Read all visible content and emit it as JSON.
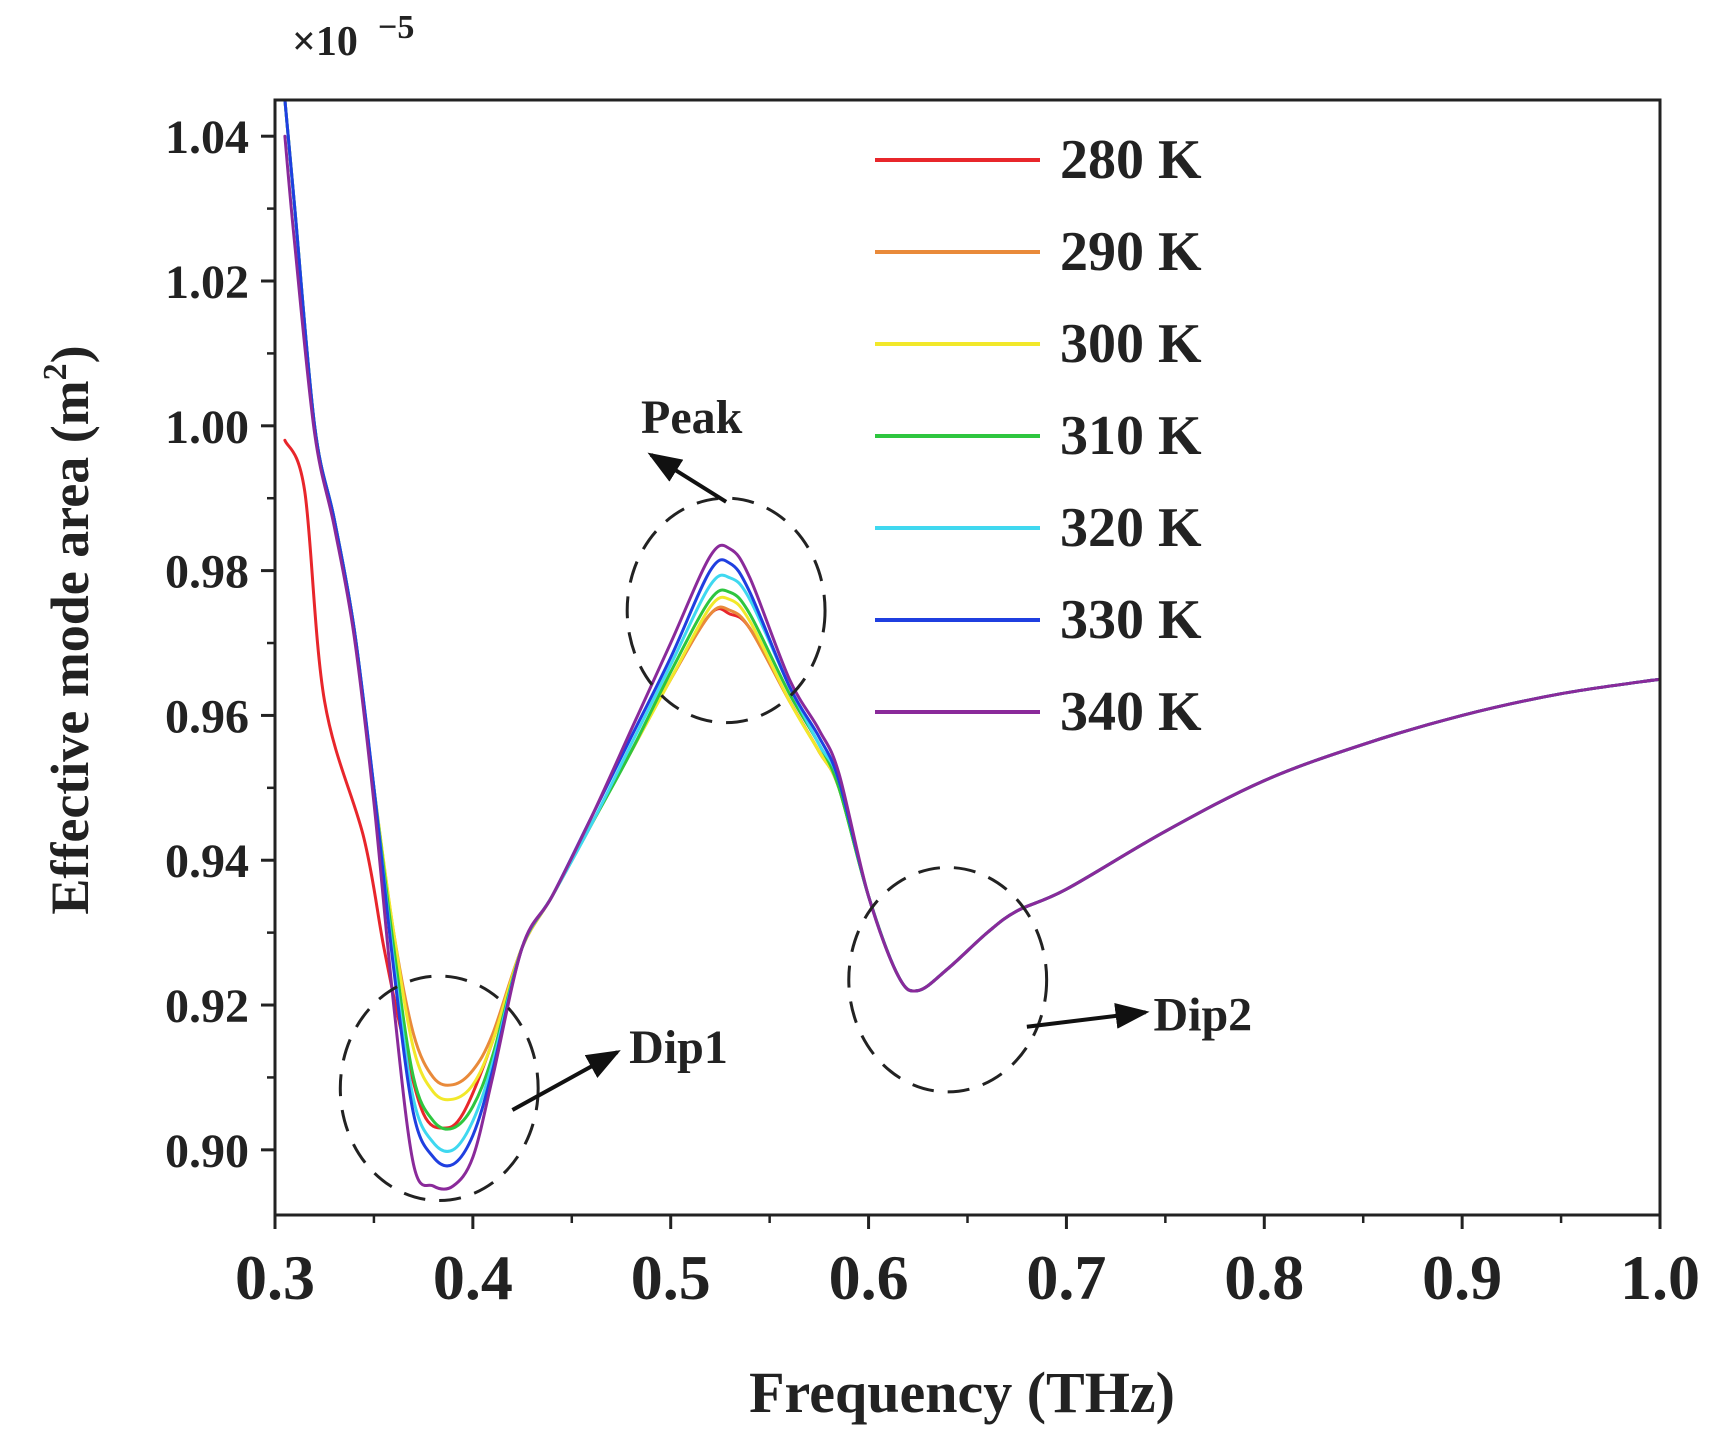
{
  "chart_data": {
    "type": "line",
    "title": "",
    "xlabel": "Frequency (THz)",
    "ylabel_main": "Effective mode area (m",
    "ylabel_sup": "2",
    "ylabel_close": ")",
    "scale_base": "×10",
    "scale_exp": "−5",
    "xlim": [
      0.3,
      1.0
    ],
    "ylim": [
      0.891,
      1.045
    ],
    "x_ticks": [
      0.3,
      0.4,
      0.5,
      0.6,
      0.7,
      0.8,
      0.9,
      1.0
    ],
    "x_tick_labels": [
      "0.3",
      "0.4",
      "0.5",
      "0.6",
      "0.7",
      "0.8",
      "0.9",
      "1.0"
    ],
    "y_ticks": [
      0.9,
      0.92,
      0.94,
      0.96,
      0.98,
      1.0,
      1.02,
      1.04
    ],
    "y_tick_labels": [
      "0.90",
      "0.92",
      "0.94",
      "0.96",
      "0.98",
      "1.00",
      "1.02",
      "1.04"
    ],
    "grid": false,
    "legend_position": "top-right",
    "series": [
      {
        "name": "280 K",
        "color": "#e8262b",
        "x": [
          0.305,
          0.315,
          0.325,
          0.345,
          0.355,
          0.365,
          0.375,
          0.385,
          0.395,
          0.41,
          0.425,
          0.44,
          0.46,
          0.48,
          0.5,
          0.52,
          0.53,
          0.54,
          0.56,
          0.575,
          0.585,
          0.6,
          0.615,
          0.625,
          0.64,
          0.66,
          0.675,
          0.7,
          0.75,
          0.8,
          0.85,
          0.9,
          0.95,
          1.0
        ],
        "y": [
          0.998,
          0.991,
          0.962,
          0.943,
          0.928,
          0.915,
          0.905,
          0.903,
          0.905,
          0.915,
          0.928,
          0.935,
          0.945,
          0.955,
          0.965,
          0.974,
          0.974,
          0.972,
          0.962,
          0.955,
          0.95,
          0.935,
          0.924,
          0.922,
          0.925,
          0.93,
          0.933,
          0.936,
          0.944,
          0.951,
          0.956,
          0.96,
          0.963,
          0.965
        ]
      },
      {
        "name": "290 K",
        "color": "#e98a3a",
        "x": [
          0.305,
          0.31,
          0.32,
          0.33,
          0.34,
          0.35,
          0.36,
          0.37,
          0.38,
          0.39,
          0.4,
          0.41,
          0.425,
          0.44,
          0.46,
          0.48,
          0.5,
          0.52,
          0.53,
          0.54,
          0.56,
          0.575,
          0.585,
          0.6,
          0.615,
          0.625,
          0.64,
          0.66,
          0.675,
          0.7,
          0.75,
          0.8,
          0.85,
          0.9,
          0.95,
          1.0
        ],
        "y": [
          1.045,
          1.03,
          1.0,
          0.987,
          0.972,
          0.95,
          0.93,
          0.916,
          0.91,
          0.909,
          0.911,
          0.916,
          0.928,
          0.935,
          0.945,
          0.955,
          0.965,
          0.974,
          0.9745,
          0.972,
          0.962,
          0.955,
          0.95,
          0.935,
          0.924,
          0.922,
          0.925,
          0.93,
          0.933,
          0.936,
          0.944,
          0.951,
          0.956,
          0.96,
          0.963,
          0.965
        ]
      },
      {
        "name": "300 K",
        "color": "#f2e82a",
        "x": [
          0.305,
          0.31,
          0.32,
          0.33,
          0.34,
          0.35,
          0.36,
          0.37,
          0.38,
          0.39,
          0.4,
          0.41,
          0.425,
          0.44,
          0.46,
          0.48,
          0.5,
          0.52,
          0.53,
          0.54,
          0.56,
          0.575,
          0.585,
          0.6,
          0.615,
          0.625,
          0.64,
          0.66,
          0.675,
          0.7,
          0.75,
          0.8,
          0.85,
          0.9,
          0.95,
          1.0
        ],
        "y": [
          1.045,
          1.03,
          1.0,
          0.987,
          0.972,
          0.95,
          0.93,
          0.914,
          0.908,
          0.907,
          0.909,
          0.915,
          0.928,
          0.935,
          0.945,
          0.955,
          0.965,
          0.975,
          0.976,
          0.973,
          0.962,
          0.955,
          0.95,
          0.935,
          0.924,
          0.922,
          0.925,
          0.93,
          0.933,
          0.936,
          0.944,
          0.951,
          0.956,
          0.96,
          0.963,
          0.965
        ]
      },
      {
        "name": "310 K",
        "color": "#2ec63f",
        "x": [
          0.305,
          0.31,
          0.32,
          0.33,
          0.34,
          0.35,
          0.36,
          0.37,
          0.38,
          0.39,
          0.4,
          0.41,
          0.425,
          0.44,
          0.46,
          0.48,
          0.5,
          0.52,
          0.53,
          0.54,
          0.56,
          0.575,
          0.585,
          0.6,
          0.615,
          0.625,
          0.64,
          0.66,
          0.675,
          0.7,
          0.75,
          0.8,
          0.85,
          0.9,
          0.95,
          1.0
        ],
        "y": [
          1.045,
          1.03,
          1.0,
          0.987,
          0.972,
          0.95,
          0.928,
          0.91,
          0.904,
          0.903,
          0.906,
          0.913,
          0.928,
          0.935,
          0.945,
          0.955,
          0.966,
          0.976,
          0.977,
          0.974,
          0.963,
          0.956,
          0.95,
          0.935,
          0.924,
          0.922,
          0.925,
          0.93,
          0.933,
          0.936,
          0.944,
          0.951,
          0.956,
          0.96,
          0.963,
          0.965
        ]
      },
      {
        "name": "320 K",
        "color": "#3fd8f0",
        "x": [
          0.305,
          0.31,
          0.32,
          0.33,
          0.34,
          0.35,
          0.36,
          0.37,
          0.38,
          0.39,
          0.4,
          0.41,
          0.425,
          0.44,
          0.46,
          0.48,
          0.5,
          0.52,
          0.53,
          0.54,
          0.56,
          0.575,
          0.585,
          0.6,
          0.615,
          0.625,
          0.64,
          0.66,
          0.675,
          0.7,
          0.75,
          0.8,
          0.85,
          0.9,
          0.95,
          1.0
        ],
        "y": [
          1.045,
          1.03,
          1.0,
          0.987,
          0.972,
          0.95,
          0.926,
          0.907,
          0.901,
          0.9,
          0.904,
          0.912,
          0.928,
          0.935,
          0.945,
          0.956,
          0.967,
          0.978,
          0.979,
          0.976,
          0.964,
          0.956,
          0.951,
          0.935,
          0.924,
          0.922,
          0.925,
          0.93,
          0.933,
          0.936,
          0.944,
          0.951,
          0.956,
          0.96,
          0.963,
          0.965
        ]
      },
      {
        "name": "330 K",
        "color": "#1f3fe0",
        "x": [
          0.305,
          0.31,
          0.32,
          0.33,
          0.34,
          0.35,
          0.36,
          0.37,
          0.38,
          0.39,
          0.4,
          0.41,
          0.425,
          0.44,
          0.46,
          0.48,
          0.5,
          0.52,
          0.53,
          0.54,
          0.56,
          0.575,
          0.585,
          0.6,
          0.615,
          0.625,
          0.64,
          0.66,
          0.675,
          0.7,
          0.75,
          0.8,
          0.85,
          0.9,
          0.95,
          1.0
        ],
        "y": [
          1.045,
          1.03,
          1.0,
          0.987,
          0.972,
          0.95,
          0.925,
          0.905,
          0.899,
          0.898,
          0.902,
          0.911,
          0.928,
          0.935,
          0.946,
          0.957,
          0.968,
          0.98,
          0.981,
          0.977,
          0.964,
          0.957,
          0.951,
          0.935,
          0.924,
          0.922,
          0.925,
          0.93,
          0.933,
          0.936,
          0.944,
          0.951,
          0.956,
          0.96,
          0.963,
          0.965
        ]
      },
      {
        "name": "340 K",
        "color": "#8a2a9a",
        "x": [
          0.305,
          0.31,
          0.32,
          0.33,
          0.34,
          0.35,
          0.36,
          0.37,
          0.38,
          0.39,
          0.4,
          0.41,
          0.425,
          0.44,
          0.46,
          0.48,
          0.5,
          0.52,
          0.53,
          0.54,
          0.56,
          0.575,
          0.585,
          0.6,
          0.615,
          0.625,
          0.64,
          0.66,
          0.675,
          0.7,
          0.75,
          0.8,
          0.85,
          0.9,
          0.95,
          1.0
        ],
        "y": [
          1.04,
          1.025,
          0.999,
          0.986,
          0.971,
          0.948,
          0.92,
          0.898,
          0.895,
          0.895,
          0.899,
          0.91,
          0.928,
          0.935,
          0.946,
          0.958,
          0.97,
          0.982,
          0.983,
          0.979,
          0.965,
          0.958,
          0.952,
          0.935,
          0.924,
          0.922,
          0.925,
          0.93,
          0.933,
          0.936,
          0.944,
          0.951,
          0.956,
          0.96,
          0.963,
          0.965
        ]
      }
    ],
    "annotations": [
      {
        "label": "Peak",
        "circle_center": [
          0.528,
          0.9745
        ],
        "circle_r": [
          0.05,
          0.0155
        ],
        "arrow_from": [
          0.528,
          0.9895
        ],
        "arrow_to": [
          0.49,
          0.996
        ],
        "text_at": [
          0.485,
          1.0015
        ]
      },
      {
        "label": "Dip1",
        "circle_center": [
          0.383,
          0.9085
        ],
        "circle_r": [
          0.05,
          0.0155
        ],
        "arrow_from": [
          0.42,
          0.9055
        ],
        "arrow_to": [
          0.473,
          0.9135
        ],
        "text_at": [
          0.479,
          0.9145
        ]
      },
      {
        "label": "Dip2",
        "circle_center": [
          0.64,
          0.9235
        ],
        "circle_r": [
          0.05,
          0.0155
        ],
        "arrow_from": [
          0.68,
          0.917
        ],
        "arrow_to": [
          0.74,
          0.919
        ],
        "text_at": [
          0.744,
          0.919
        ]
      }
    ]
  }
}
